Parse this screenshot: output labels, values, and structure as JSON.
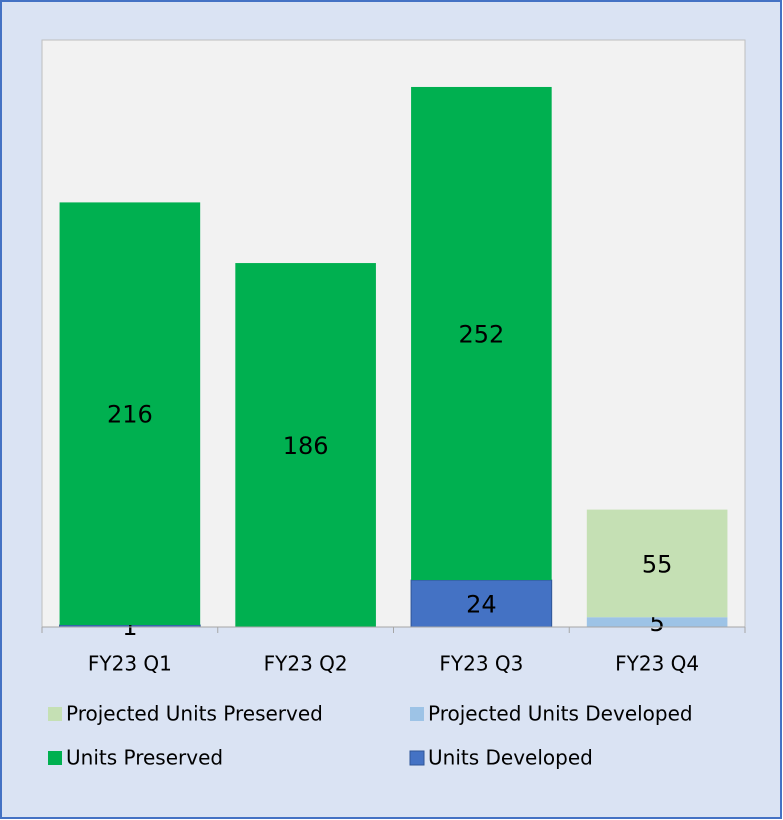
{
  "chart_data": {
    "type": "stacked_bar",
    "categories": [
      "FY23 Q1",
      "FY23 Q2",
      "FY23 Q3",
      "FY23 Q4"
    ],
    "series": [
      {
        "name": "Units Developed",
        "color": "#4472c4",
        "values": [
          1,
          null,
          24,
          null
        ]
      },
      {
        "name": "Units Preserved",
        "color": "#00b050",
        "values": [
          216,
          186,
          252,
          null
        ]
      },
      {
        "name": "Projected Units Developed",
        "color": "#9dc3e6",
        "values": [
          null,
          null,
          null,
          5
        ]
      },
      {
        "name": "Projected Units Preserved",
        "color": "#c5e0b4",
        "values": [
          null,
          null,
          null,
          55
        ]
      }
    ],
    "ylim": [
      0,
      300
    ]
  }
}
